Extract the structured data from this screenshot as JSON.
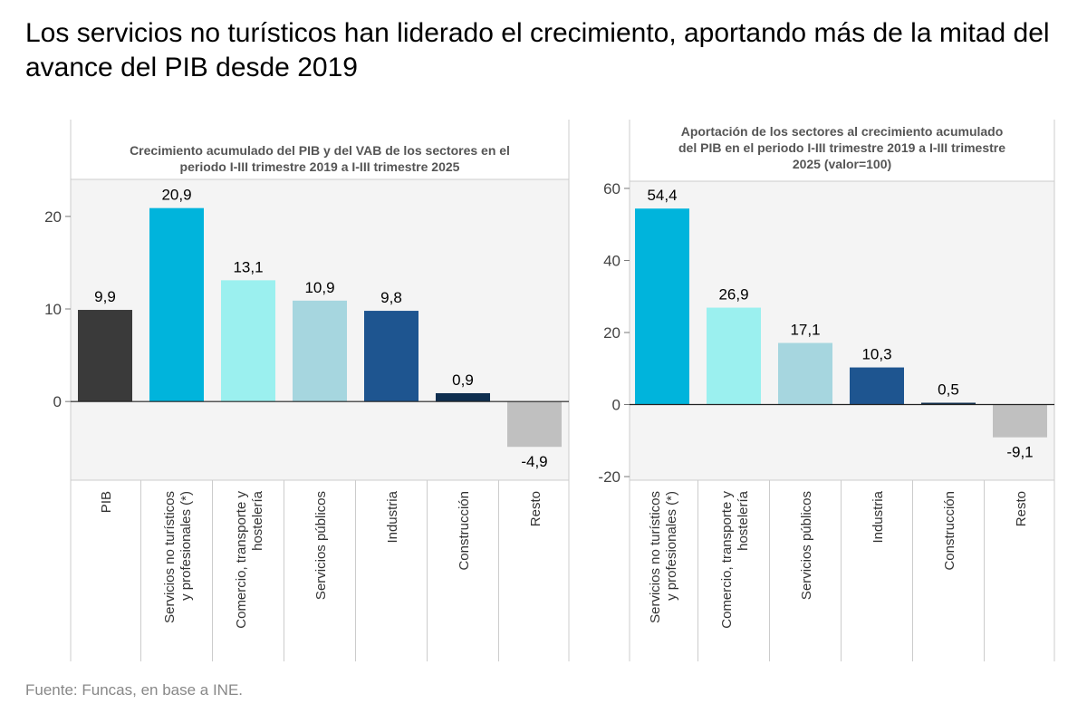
{
  "title": "Los servicios no turísticos han liderado el crecimiento, aportando más de la mitad del avance del PIB desde 2019",
  "source": "Fuente: Funcas, en base a INE.",
  "chart_data": [
    {
      "type": "bar",
      "title": [
        "Crecimiento acumulado del PIB y del VAB de los sectores en el",
        "periodo I-III trimestre 2019 a I-III trimestre 2025"
      ],
      "categories": [
        [
          "PIB"
        ],
        [
          "Servicios no turísticos",
          "y profesionales (*)"
        ],
        [
          "Comercio, transporte y",
          "hostelería"
        ],
        [
          "Servicios públicos"
        ],
        [
          "Industria"
        ],
        [
          "Construcción"
        ],
        [
          "Resto"
        ]
      ],
      "values": [
        9.9,
        20.9,
        13.1,
        10.9,
        9.8,
        0.9,
        -4.9
      ],
      "value_labels": [
        "9,9",
        "20,9",
        "13,1",
        "10,9",
        "9,8",
        "0,9",
        "-4,9"
      ],
      "colors": [
        "#3a3a3a",
        "#00b4dc",
        "#9bf0ef",
        "#a6d6df",
        "#1e5590",
        "#0f2f50",
        "#c0c0c0"
      ],
      "yticks": [
        0,
        10,
        20
      ],
      "ylim": [
        -8.5,
        24
      ],
      "grid": false
    },
    {
      "type": "bar",
      "title": [
        "Aportación de los sectores al crecimiento acumulado",
        "del PIB en el periodo I-III trimestre 2019 a I-III trimestre",
        "2025 (valor=100)"
      ],
      "categories": [
        [
          "Servicios no turísticos",
          "y profesionales (*)"
        ],
        [
          "Comercio, transporte y",
          "hostelería"
        ],
        [
          "Servicios públicos"
        ],
        [
          "Industria"
        ],
        [
          "Construcción"
        ],
        [
          "Resto"
        ]
      ],
      "values": [
        54.4,
        26.9,
        17.1,
        10.3,
        0.5,
        -9.1
      ],
      "value_labels": [
        "54,4",
        "26,9",
        "17,1",
        "10,3",
        "0,5",
        "-9,1"
      ],
      "colors": [
        "#00b4dc",
        "#9bf0ef",
        "#a6d6df",
        "#1e5590",
        "#0f2f50",
        "#c0c0c0"
      ],
      "yticks": [
        -20,
        0,
        20,
        40,
        60
      ],
      "ylim": [
        -21,
        62
      ],
      "grid": false
    }
  ]
}
